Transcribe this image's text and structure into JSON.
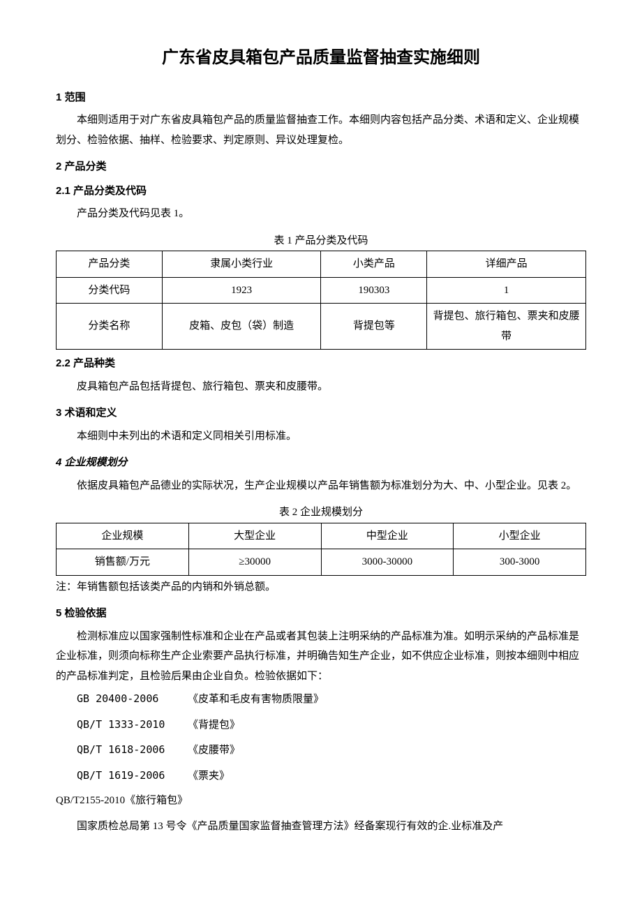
{
  "title": "广东省皮具箱包产品质量监督抽查实施细则",
  "s1": {
    "heading": "1 范围",
    "p1": "本细则适用于对广东省皮具箱包产品的质量监督抽查工作。本细则内容包括产品分类、术语和定义、企业规模划分、检验依据、抽样、检验要求、判定原则、异议处理复检。"
  },
  "s2": {
    "heading": "2 产品分类",
    "s21_heading": "2.1 产品分类及代码",
    "s21_p": "产品分类及代码见表 1。",
    "table1_caption": "表 1 产品分类及代码",
    "table1": {
      "r1": {
        "c1": "产品分类",
        "c2": "隶属小类行业",
        "c3": "小类产品",
        "c4": "详细产品"
      },
      "r2": {
        "c1": "分类代码",
        "c2": "1923",
        "c3": "190303",
        "c4": "1"
      },
      "r3": {
        "c1": "分类名称",
        "c2": "皮箱、皮包（袋）制造",
        "c3": "背提包等",
        "c4": "背提包、旅行箱包、票夹和皮腰带"
      }
    },
    "s22_heading": "2.2 产品种类",
    "s22_p": "皮具箱包产品包括背提包、旅行箱包、票夹和皮腰带。"
  },
  "s3": {
    "heading": "3 术语和定义",
    "p1": "本细则中未列出的术语和定义同相关引用标准。"
  },
  "s4": {
    "heading": "4 企业规模划分",
    "p1": "依据皮具箱包产品德业的实际状况，生产企业规模以产品年销售额为标准划分为大、中、小型企业。见表 2。",
    "table2_caption": "表 2 企业规模划分",
    "table2": {
      "r1": {
        "c1": "企业规模",
        "c2": "大型企业",
        "c3": "中型企业",
        "c4": "小型企业"
      },
      "r2": {
        "c1": "销售额/万元",
        "c2": "≥30000",
        "c3": "3000-30000",
        "c4": "300-3000"
      }
    },
    "note": "注：年销售额包括该类产品的内销和外销总额。"
  },
  "s5": {
    "heading": "5 检验依据",
    "p1": "检测标准应以国家强制性标准和企业在产品或者其包装上注明采纳的产品标准为准。如明示采纳的产品标准是企业标准，则须向标称生产企业索要产品执行标准，并明确告知生产企业，如不供应企业标准，则按本细则中相应的产品标准判定，且检验后果由企业自负。检验依据如下：",
    "standards": [
      {
        "code": "GB 20400-2006",
        "name": "《皮革和毛皮有害物质限量》"
      },
      {
        "code": "QB/T 1333-2010",
        "name": "《背提包》"
      },
      {
        "code": "QB/T 1618-2006",
        "name": "《皮腰带》"
      },
      {
        "code": "QB/T 1619-2006",
        "name": "《票夹》"
      }
    ],
    "std_last": "QB/T2155-2010《旅行箱包》",
    "p2": "国家质检总局第 13 号令《产品质量国家监督抽查管理方法》经备案现行有效的企.业标准及产"
  }
}
